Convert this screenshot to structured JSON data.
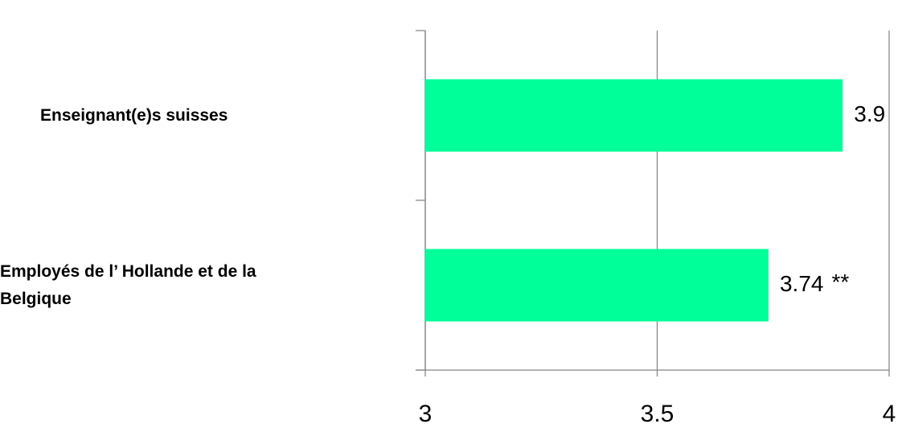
{
  "chart_data": {
    "type": "bar",
    "orientation": "horizontal",
    "categories": [
      "Enseignant(e)s suisses",
      "Employés de l’ Hollande et de la Belgique"
    ],
    "values": [
      3.9,
      3.74
    ],
    "color": "#00ff99",
    "annotations": [
      {
        "text": "**",
        "category": 1
      }
    ],
    "xlim": [
      3,
      4
    ],
    "xticks": [
      3,
      3.5,
      4
    ],
    "grid": true
  }
}
